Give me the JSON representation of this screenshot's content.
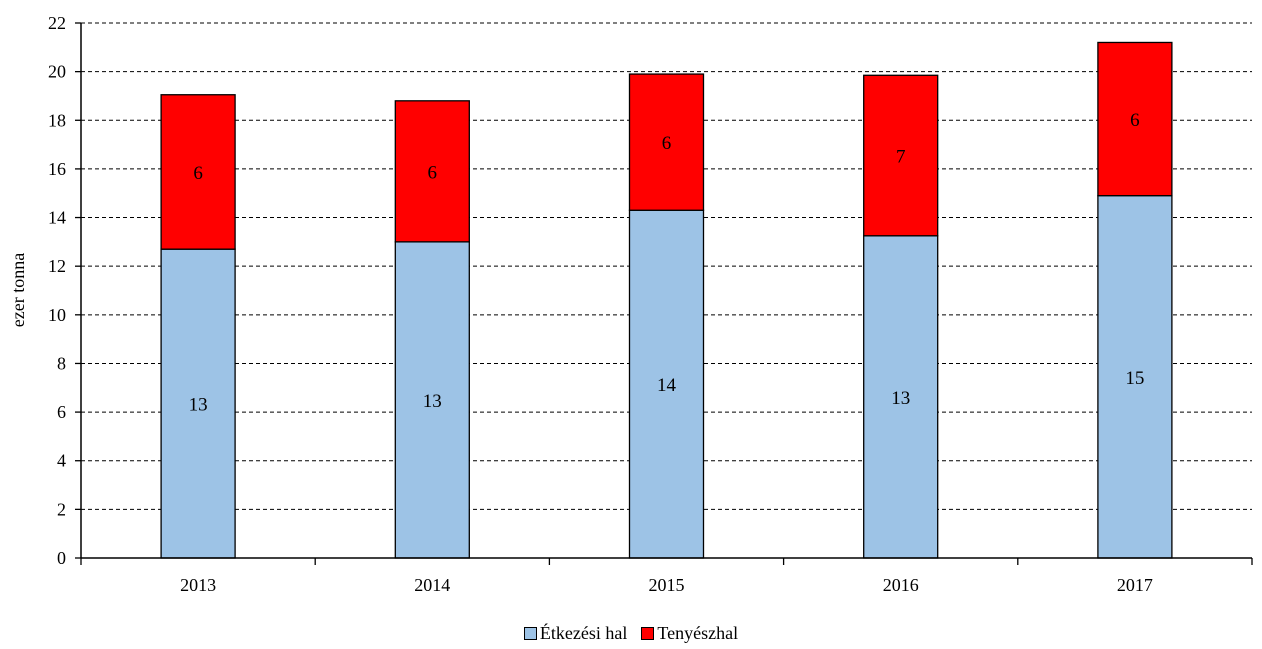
{
  "chart_data": {
    "type": "bar",
    "stacked": true,
    "categories": [
      "2013",
      "2014",
      "2015",
      "2016",
      "2017"
    ],
    "series": [
      {
        "name": "Étkezési hal",
        "values": [
          12.7,
          13.0,
          14.3,
          13.25,
          14.9
        ],
        "labels": [
          "13",
          "13",
          "14",
          "13",
          "15"
        ],
        "color": "#9DC3E6"
      },
      {
        "name": "Tenyészhal",
        "values": [
          6.35,
          5.8,
          5.6,
          6.6,
          6.3
        ],
        "labels": [
          "6",
          "6",
          "6",
          "7",
          "6"
        ],
        "color": "#FF0000"
      }
    ],
    "ylabel": "ezer tonna",
    "xlabel": "",
    "ylim": [
      0,
      22
    ],
    "yticks": [
      0,
      2,
      4,
      6,
      8,
      10,
      12,
      14,
      16,
      18,
      20,
      22
    ],
    "grid": "horizontal dashed",
    "legend_position": "bottom"
  }
}
